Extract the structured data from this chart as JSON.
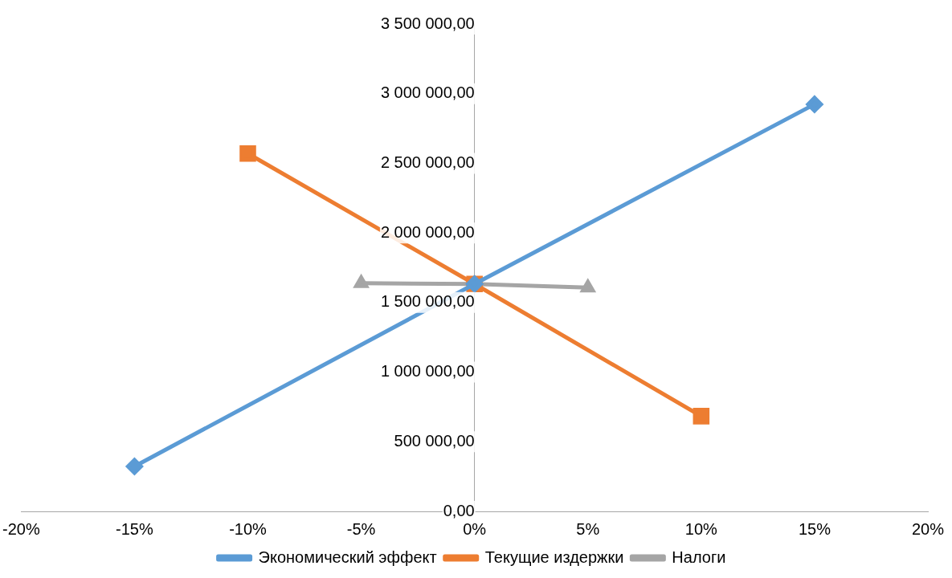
{
  "chart_data": {
    "type": "line",
    "legend": "bottom",
    "grid": false,
    "xlim": [
      -20,
      20
    ],
    "xticks": [
      {
        "value": -20,
        "label": "-20%"
      },
      {
        "value": -15,
        "label": "-15%"
      },
      {
        "value": -10,
        "label": "-10%"
      },
      {
        "value": -5,
        "label": "-5%"
      },
      {
        "value": 0,
        "label": "0%"
      },
      {
        "value": 5,
        "label": "5%"
      },
      {
        "value": 10,
        "label": "10%"
      },
      {
        "value": 15,
        "label": "15%"
      },
      {
        "value": 20,
        "label": "20%"
      }
    ],
    "ylim": [
      0,
      3500000
    ],
    "yticks": [
      {
        "value": 0,
        "label": "0,00"
      },
      {
        "value": 500000,
        "label": "500 000,00"
      },
      {
        "value": 1000000,
        "label": "1 000 000,00"
      },
      {
        "value": 1500000,
        "label": "1 500 000,00"
      },
      {
        "value": 2000000,
        "label": "2 000 000,00"
      },
      {
        "value": 2500000,
        "label": "2 500 000,00"
      },
      {
        "value": 3000000,
        "label": "3 000 000,00"
      },
      {
        "value": 3500000,
        "label": "3 500 000,00"
      }
    ],
    "series": [
      {
        "name": "Экономический эффект",
        "color": "#5b9bd5",
        "marker": "diamond",
        "x": [
          -15,
          0,
          15
        ],
        "values": [
          323000,
          1633000,
          2924000
        ]
      },
      {
        "name": "Текущие издержки",
        "color": "#ed7d31",
        "marker": "square",
        "x": [
          -10,
          0,
          10
        ],
        "values": [
          2570000,
          1633000,
          684000
        ]
      },
      {
        "name": "Налоги",
        "color": "#a5a5a5",
        "marker": "triangle",
        "x": [
          -5,
          0,
          5
        ],
        "values": [
          1639000,
          1633000,
          1608000
        ]
      }
    ]
  }
}
